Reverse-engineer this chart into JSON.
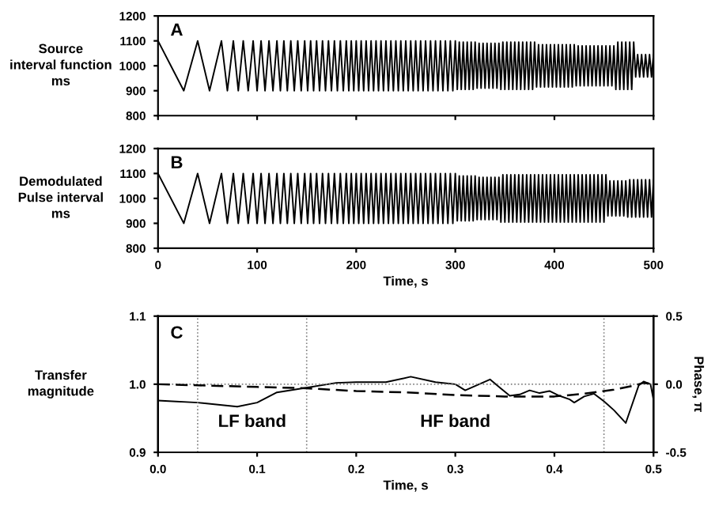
{
  "chart_data": [
    {
      "type": "line",
      "ylabel": "Source\ninterval function\nms",
      "annotations": [
        "A"
      ],
      "xlim": [
        0,
        500
      ],
      "xticks": [
        0,
        100,
        200,
        300,
        400,
        500
      ],
      "ylim": [
        800,
        1200
      ],
      "yticks": [
        800,
        900,
        1000,
        1100,
        1200
      ],
      "tick_labels": "y",
      "grid": false,
      "legend": false,
      "x": [
        0,
        26,
        40,
        52,
        64,
        70,
        76,
        81,
        86,
        91,
        96,
        100,
        104,
        108,
        112,
        116,
        120,
        123.5,
        127,
        130.5,
        134,
        137.5,
        141,
        144.5,
        148,
        151,
        154,
        157,
        160,
        163,
        166,
        169,
        172,
        175,
        178,
        181,
        184,
        187,
        190,
        192.5,
        195,
        197.5,
        200,
        202.5,
        205,
        207.5,
        210,
        212.5,
        215,
        217.5,
        220,
        222.5,
        225,
        227.5,
        230,
        232.5,
        235,
        237.5,
        240,
        242.5,
        245,
        247.5,
        250,
        252.5,
        255,
        257.5,
        260,
        262.5,
        265,
        267.5,
        270,
        272.5,
        275,
        277.5,
        280,
        282.5,
        285,
        287.5,
        290,
        292.5,
        295,
        297.5,
        300,
        302,
        304,
        306,
        308,
        310,
        312,
        314,
        316,
        318,
        320,
        322,
        324,
        326,
        328,
        330,
        332,
        334,
        336,
        338,
        340,
        342,
        344,
        346,
        348,
        350,
        352,
        354,
        356,
        358,
        360,
        362,
        364,
        366,
        368,
        370,
        372,
        374,
        376,
        378,
        380,
        382,
        384,
        386,
        388,
        390,
        392,
        394,
        396,
        398,
        400,
        402,
        404,
        406,
        408,
        410,
        412,
        414,
        416,
        418,
        420,
        422,
        424,
        426,
        428,
        430,
        432,
        434,
        436,
        438,
        440,
        442,
        444,
        446,
        448,
        450,
        452,
        454,
        456,
        458,
        460,
        462,
        464,
        466,
        468,
        470,
        472,
        474,
        476,
        478,
        480,
        482,
        484,
        486,
        488,
        490,
        492,
        494,
        496,
        498,
        500
      ],
      "series": [
        {
          "color": "#000000",
          "line_style": "solid",
          "values": [
            1100,
            900,
            1100,
            900,
            1100,
            900,
            1100,
            900,
            1100,
            900,
            1100,
            900,
            1100,
            900,
            1100,
            900,
            1100,
            900,
            1100,
            900,
            1100,
            900,
            1100,
            900,
            1100,
            900,
            1100,
            900,
            1100,
            900,
            1100,
            900,
            1100,
            900,
            1100,
            900,
            1100,
            900,
            1100,
            900,
            1100,
            900,
            1100,
            900,
            1100,
            900,
            1100,
            900,
            1100,
            900,
            1100,
            900,
            1100,
            900,
            1100,
            900,
            1100,
            900,
            1100,
            900,
            1100,
            900,
            1100,
            900,
            1100,
            900,
            1100,
            900,
            1100,
            900,
            1100,
            900,
            1100,
            900,
            1100,
            900,
            1100,
            900,
            1100,
            900,
            1100,
            900,
            1100,
            905,
            1095,
            905,
            1095,
            905,
            1095,
            905,
            1095,
            905,
            1095,
            910,
            1090,
            910,
            1090,
            910,
            1090,
            910,
            1090,
            910,
            1090,
            910,
            1090,
            905,
            1095,
            905,
            1095,
            905,
            1095,
            905,
            1095,
            905,
            1095,
            905,
            1095,
            905,
            1095,
            905,
            1095,
            905,
            1095,
            915,
            1085,
            915,
            1085,
            915,
            1085,
            915,
            1085,
            915,
            1085,
            915,
            1085,
            915,
            1085,
            915,
            1085,
            915,
            1085,
            915,
            1085,
            920,
            1080,
            920,
            1080,
            920,
            1080,
            920,
            1080,
            920,
            1080,
            920,
            1080,
            920,
            1080,
            920,
            1080,
            920,
            1080,
            920,
            1080,
            905,
            1095,
            905,
            1095,
            905,
            1095,
            905,
            1095,
            905,
            1095,
            955,
            1045,
            955,
            1045,
            955,
            1045,
            955,
            1045,
            955,
            1045
          ]
        }
      ]
    },
    {
      "type": "line",
      "ylabel": "Demodulated\nPulse interval\nms",
      "xlabel": "Time, s",
      "annotations": [
        "B"
      ],
      "xlim": [
        0,
        500
      ],
      "xticks": [
        0,
        100,
        200,
        300,
        400,
        500
      ],
      "ylim": [
        800,
        1200
      ],
      "yticks": [
        800,
        900,
        1000,
        1100,
        1200
      ],
      "grid": false,
      "legend": false,
      "x": [
        0,
        26,
        40,
        52,
        64,
        70,
        76,
        81,
        86,
        91,
        96,
        100,
        104,
        108,
        112,
        116,
        120,
        123.5,
        127,
        130.5,
        134,
        137.5,
        141,
        144.5,
        148,
        151,
        154,
        157,
        160,
        163,
        166,
        169,
        172,
        175,
        178,
        181,
        184,
        187,
        190,
        192.5,
        195,
        197.5,
        200,
        202.5,
        205,
        207.5,
        210,
        212.5,
        215,
        217.5,
        220,
        222.5,
        225,
        227.5,
        230,
        232.5,
        235,
        237.5,
        240,
        242.5,
        245,
        247.5,
        250,
        252.5,
        255,
        257.5,
        260,
        262.5,
        265,
        267.5,
        270,
        272.5,
        275,
        277.5,
        280,
        282.5,
        285,
        287.5,
        290,
        292.5,
        295,
        297.5,
        300,
        302,
        304,
        306,
        308,
        310,
        312,
        314,
        316,
        318,
        320,
        322,
        324,
        326,
        328,
        330,
        332,
        334,
        336,
        338,
        340,
        342,
        344,
        346,
        348,
        350,
        352,
        354,
        356,
        358,
        360,
        362,
        364,
        366,
        368,
        370,
        372,
        374,
        376,
        378,
        380,
        382,
        384,
        386,
        388,
        390,
        392,
        394,
        396,
        398,
        400,
        402,
        404,
        406,
        408,
        410,
        412,
        414,
        416,
        418,
        420,
        422,
        424,
        426,
        428,
        430,
        432,
        434,
        436,
        438,
        440,
        442,
        444,
        446,
        448,
        450,
        452,
        454,
        456,
        458,
        460,
        462,
        464,
        466,
        468,
        470,
        472,
        474,
        476,
        478,
        480,
        482,
        484,
        486,
        488,
        490,
        492,
        494,
        496,
        498,
        500
      ],
      "series": [
        {
          "color": "#000000",
          "line_style": "solid",
          "values": [
            1100,
            900,
            1100,
            900,
            1100,
            900,
            1100,
            900,
            1100,
            900,
            1100,
            900,
            1100,
            900,
            1100,
            900,
            1100,
            900,
            1100,
            900,
            1100,
            900,
            1100,
            900,
            1100,
            900,
            1100,
            900,
            1100,
            900,
            1100,
            900,
            1100,
            900,
            1100,
            900,
            1100,
            900,
            1100,
            900,
            1100,
            900,
            1100,
            900,
            1100,
            900,
            1100,
            900,
            1100,
            900,
            1100,
            900,
            1100,
            900,
            1100,
            900,
            1100,
            900,
            1100,
            900,
            1100,
            900,
            1100,
            900,
            1100,
            900,
            1100,
            900,
            1100,
            900,
            1100,
            900,
            1100,
            900,
            1100,
            900,
            1100,
            900,
            1100,
            900,
            1100,
            900,
            1100,
            910,
            1090,
            910,
            1090,
            910,
            1090,
            910,
            1090,
            910,
            1090,
            915,
            1085,
            915,
            1085,
            915,
            1085,
            915,
            1085,
            915,
            1085,
            915,
            1085,
            905,
            1095,
            905,
            1095,
            905,
            1095,
            905,
            1095,
            905,
            1095,
            905,
            1095,
            905,
            1095,
            905,
            1095,
            905,
            1095,
            905,
            1095,
            905,
            1095,
            905,
            1095,
            905,
            1095,
            905,
            1095,
            905,
            1095,
            905,
            1095,
            905,
            1095,
            905,
            1095,
            905,
            1095,
            905,
            1095,
            905,
            1095,
            905,
            1095,
            905,
            1095,
            905,
            1095,
            905,
            1095,
            905,
            1095,
            905,
            1095,
            930,
            1070,
            930,
            1070,
            930,
            1070,
            930,
            1070,
            930,
            1070,
            925,
            1075,
            925,
            1075,
            925,
            1075,
            925,
            1075,
            925,
            1075,
            925,
            1075,
            925,
            1075
          ]
        }
      ]
    },
    {
      "type": "line",
      "ylabel": "Transfer\nmagnitude",
      "xlabel": "Time, s",
      "y2label": "Phase, π",
      "annotations": [
        "C",
        "LF band",
        "HF band"
      ],
      "xlim": [
        0,
        0.5
      ],
      "xticks": [
        {
          "value": 0,
          "label": "0.0"
        },
        {
          "value": 0.1,
          "label": "0.1"
        },
        {
          "value": 0.2,
          "label": "0.2"
        },
        {
          "value": 0.3,
          "label": "0.3"
        },
        {
          "value": 0.4,
          "label": "0.4"
        },
        {
          "value": 0.5,
          "label": "0.5"
        }
      ],
      "ylim": [
        0.9,
        1.1
      ],
      "yticks": [
        {
          "value": 0.9,
          "label": "0.9"
        },
        {
          "value": 1.0,
          "label": "1.0"
        },
        {
          "value": 1.1,
          "label": "1.1"
        }
      ],
      "y2lim": [
        -0.5,
        0.5
      ],
      "y2ticks": [
        {
          "value": -0.5,
          "label": "-0.5"
        },
        {
          "value": 0,
          "label": "0.0"
        },
        {
          "value": 0.5,
          "label": "0.5"
        }
      ],
      "grid": false,
      "legend": false,
      "ref_lines": [
        {
          "axis": "y",
          "value": 1.0,
          "color": "#808080",
          "line_style": "dotted"
        },
        {
          "axis": "x",
          "value": 0.04,
          "color": "#808080",
          "line_style": "dotted"
        },
        {
          "axis": "x",
          "value": 0.15,
          "color": "#808080",
          "line_style": "dotted"
        },
        {
          "axis": "x",
          "value": 0.45,
          "color": "#808080",
          "line_style": "dotted"
        }
      ],
      "series": [
        {
          "color": "#000000",
          "line_style": "solid",
          "x": [
            0,
            0.04,
            0.08,
            0.1,
            0.12,
            0.15,
            0.18,
            0.2,
            0.23,
            0.255,
            0.28,
            0.3,
            0.31,
            0.335,
            0.345,
            0.355,
            0.365,
            0.375,
            0.385,
            0.395,
            0.405,
            0.415,
            0.42,
            0.43,
            0.44,
            0.45,
            0.46,
            0.472,
            0.485,
            0.49,
            0.497,
            0.5
          ],
          "values": [
            0.976,
            0.973,
            0.967,
            0.973,
            0.988,
            0.995,
            1.002,
            1.003,
            1.003,
            1.011,
            1.003,
            1.0,
            0.991,
            1.007,
            0.995,
            0.983,
            0.985,
            0.991,
            0.987,
            0.99,
            0.983,
            0.978,
            0.973,
            0.982,
            0.986,
            0.975,
            0.962,
            0.943,
            0.998,
            1.004,
            1.0,
            0.977
          ]
        },
        {
          "color": "#000000",
          "line_style": "dashed",
          "axis": "y2",
          "x": [
            0,
            0.05,
            0.1,
            0.15,
            0.2,
            0.25,
            0.3,
            0.35,
            0.4,
            0.43,
            0.46,
            0.48,
            0.49,
            0.5
          ],
          "values": [
            0,
            -0.01,
            -0.02,
            -0.03,
            -0.05,
            -0.06,
            -0.08,
            -0.09,
            -0.09,
            -0.07,
            -0.04,
            -0.01,
            0.01,
            0.0
          ]
        }
      ]
    }
  ]
}
